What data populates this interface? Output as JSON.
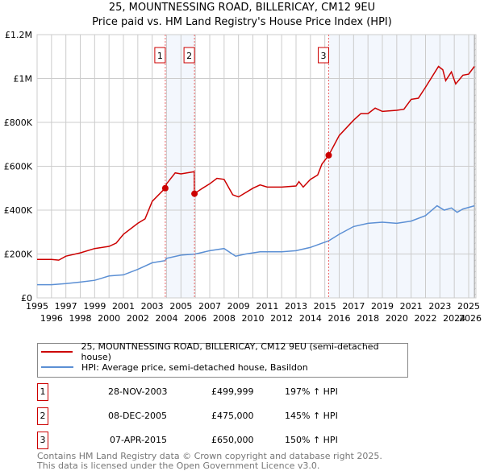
{
  "chart_data": {
    "type": "line",
    "title": "25, MOUNTNESSING ROAD, BILLERICAY, CM12 9EU",
    "subtitle": "Price paid vs. HM Land Registry's House Price Index (HPI)",
    "xlim": [
      1995,
      2026.0
    ],
    "ylim": [
      0,
      1200000
    ],
    "x_ticks": [
      "1995",
      "1996",
      "1997",
      "1998",
      "1999",
      "2000",
      "2001",
      "2002",
      "2003",
      "2004",
      "2005",
      "2006",
      "2007",
      "2008",
      "2009",
      "2010",
      "2011",
      "2012",
      "2013",
      "2014",
      "2015",
      "2016",
      "2017",
      "2018",
      "2019",
      "2020",
      "2021",
      "2022",
      "2023",
      "2024",
      "2025",
      "2026"
    ],
    "y_ticks": [
      {
        "v": 0,
        "label": "£0"
      },
      {
        "v": 200000,
        "label": "£200K"
      },
      {
        "v": 400000,
        "label": "£400K"
      },
      {
        "v": 600000,
        "label": "£600K"
      },
      {
        "v": 800000,
        "label": "£800K"
      },
      {
        "v": 1000000,
        "label": "£1M"
      },
      {
        "v": 1200000,
        "label": "£1.2M"
      }
    ],
    "grid": true,
    "series": [
      {
        "name": "25, MOUNTNESSING ROAD, BILLERICAY, CM12 9EU (semi-detached house)",
        "color": "#cc0000",
        "x": [
          1995,
          1996,
          1996.5,
          1997,
          1998,
          1999,
          2000,
          2000.5,
          2001,
          2002,
          2002.5,
          2003,
          2003.9,
          2004,
          2004.6,
          2005,
          2005.92,
          2005.93,
          2006.5,
          2007,
          2007.5,
          2008,
          2008.6,
          2009,
          2010,
          2010.5,
          2011,
          2012,
          2013,
          2013.2,
          2013.5,
          2014,
          2014.5,
          2014.8,
          2015.27,
          2016,
          2017,
          2017.5,
          2018,
          2018.5,
          2019,
          2020,
          2020.5,
          2021,
          2021.5,
          2022,
          2022.9,
          2023.2,
          2023.4,
          2023.8,
          2024.1,
          2024.6,
          2025.0,
          2025.4
        ],
        "values": [
          175000,
          175000,
          172000,
          190000,
          205000,
          225000,
          235000,
          250000,
          290000,
          340000,
          360000,
          440000,
          499999,
          520000,
          570000,
          565000,
          575000,
          475000,
          500000,
          520000,
          545000,
          540000,
          470000,
          460000,
          500000,
          515000,
          505000,
          505000,
          510000,
          530000,
          505000,
          540000,
          560000,
          610000,
          650000,
          740000,
          810000,
          840000,
          840000,
          865000,
          850000,
          855000,
          860000,
          905000,
          910000,
          960000,
          1055000,
          1040000,
          990000,
          1030000,
          975000,
          1015000,
          1020000,
          1055000
        ]
      },
      {
        "name": "HPI: Average price, semi-detached house, Basildon",
        "color": "#5b8fd4",
        "x": [
          1995,
          1996,
          1997,
          1998,
          1999,
          2000,
          2001,
          2002,
          2003,
          2003.9,
          2004,
          2005,
          2006,
          2007,
          2008,
          2008.8,
          2009.5,
          2010.5,
          2012,
          2013,
          2014,
          2015.27,
          2016,
          2017,
          2018,
          2019,
          2020,
          2021,
          2022,
          2022.8,
          2023.3,
          2023.8,
          2024.2,
          2024.6,
          2025.4
        ],
        "values": [
          60000,
          60000,
          65000,
          72000,
          80000,
          100000,
          105000,
          130000,
          160000,
          170000,
          180000,
          195000,
          200000,
          215000,
          225000,
          190000,
          200000,
          210000,
          210000,
          215000,
          230000,
          260000,
          290000,
          325000,
          340000,
          345000,
          340000,
          350000,
          375000,
          420000,
          400000,
          410000,
          390000,
          405000,
          420000
        ]
      }
    ],
    "sales": [
      {
        "num": "1",
        "x": 2003.91,
        "value": 499999,
        "date": "28-NOV-2003",
        "price": "£499,999",
        "hpi": "197% ↑ HPI"
      },
      {
        "num": "2",
        "x": 2005.94,
        "value": 475000,
        "date": "08-DEC-2005",
        "price": "£475,000",
        "hpi": "145% ↑ HPI"
      },
      {
        "num": "3",
        "x": 2015.27,
        "value": 650000,
        "date": "07-APR-2015",
        "price": "£650,000",
        "hpi": "150% ↑ HPI"
      }
    ],
    "data_end": 2025.4,
    "legend": "below"
  },
  "footer": [
    "Contains HM Land Registry data © Crown copyright and database right 2025.",
    "This data is licensed under the Open Government Licence v3.0."
  ]
}
